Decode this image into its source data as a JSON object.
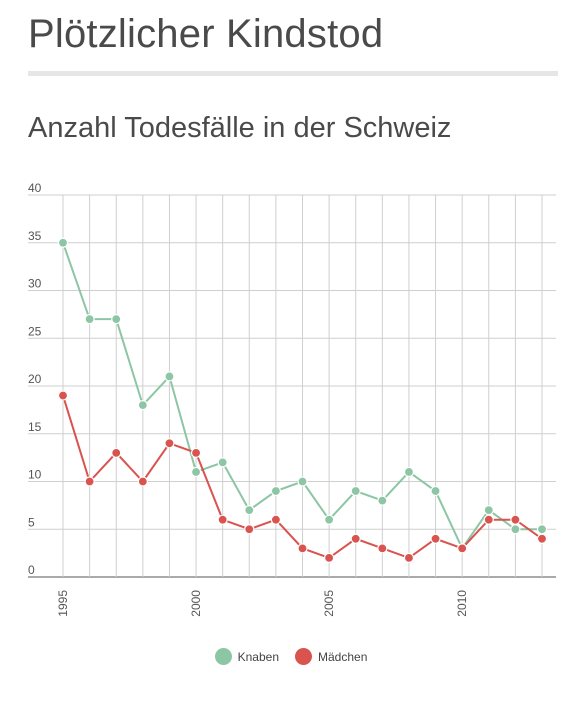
{
  "page": {
    "title": "Plötzlicher Kindstod"
  },
  "chart_data": {
    "type": "line",
    "title": "Anzahl Todesfälle in der Schweiz",
    "xlabel": "",
    "ylabel": "",
    "x": [
      1995,
      1996,
      1997,
      1998,
      1999,
      2000,
      2001,
      2002,
      2003,
      2004,
      2005,
      2006,
      2007,
      2008,
      2009,
      2010,
      2011,
      2012,
      2013
    ],
    "xlim": [
      1995,
      2013
    ],
    "ylim": [
      0,
      40
    ],
    "y_ticks": [
      0,
      5,
      10,
      15,
      20,
      25,
      30,
      35,
      40
    ],
    "x_tick_labels": [
      1995,
      2000,
      2005,
      2010
    ],
    "grid": true,
    "legend_position": "bottom-center",
    "series": [
      {
        "name": "Knaben",
        "color": "#8cc6a4",
        "values": [
          35,
          27,
          27,
          18,
          21,
          11,
          12,
          7,
          9,
          10,
          6,
          9,
          8,
          11,
          9,
          3,
          7,
          5,
          5
        ]
      },
      {
        "name": "Mädchen",
        "color": "#d9534f",
        "values": [
          19,
          10,
          13,
          10,
          14,
          13,
          6,
          5,
          6,
          3,
          2,
          4,
          3,
          2,
          4,
          3,
          6,
          6,
          4
        ]
      }
    ]
  }
}
